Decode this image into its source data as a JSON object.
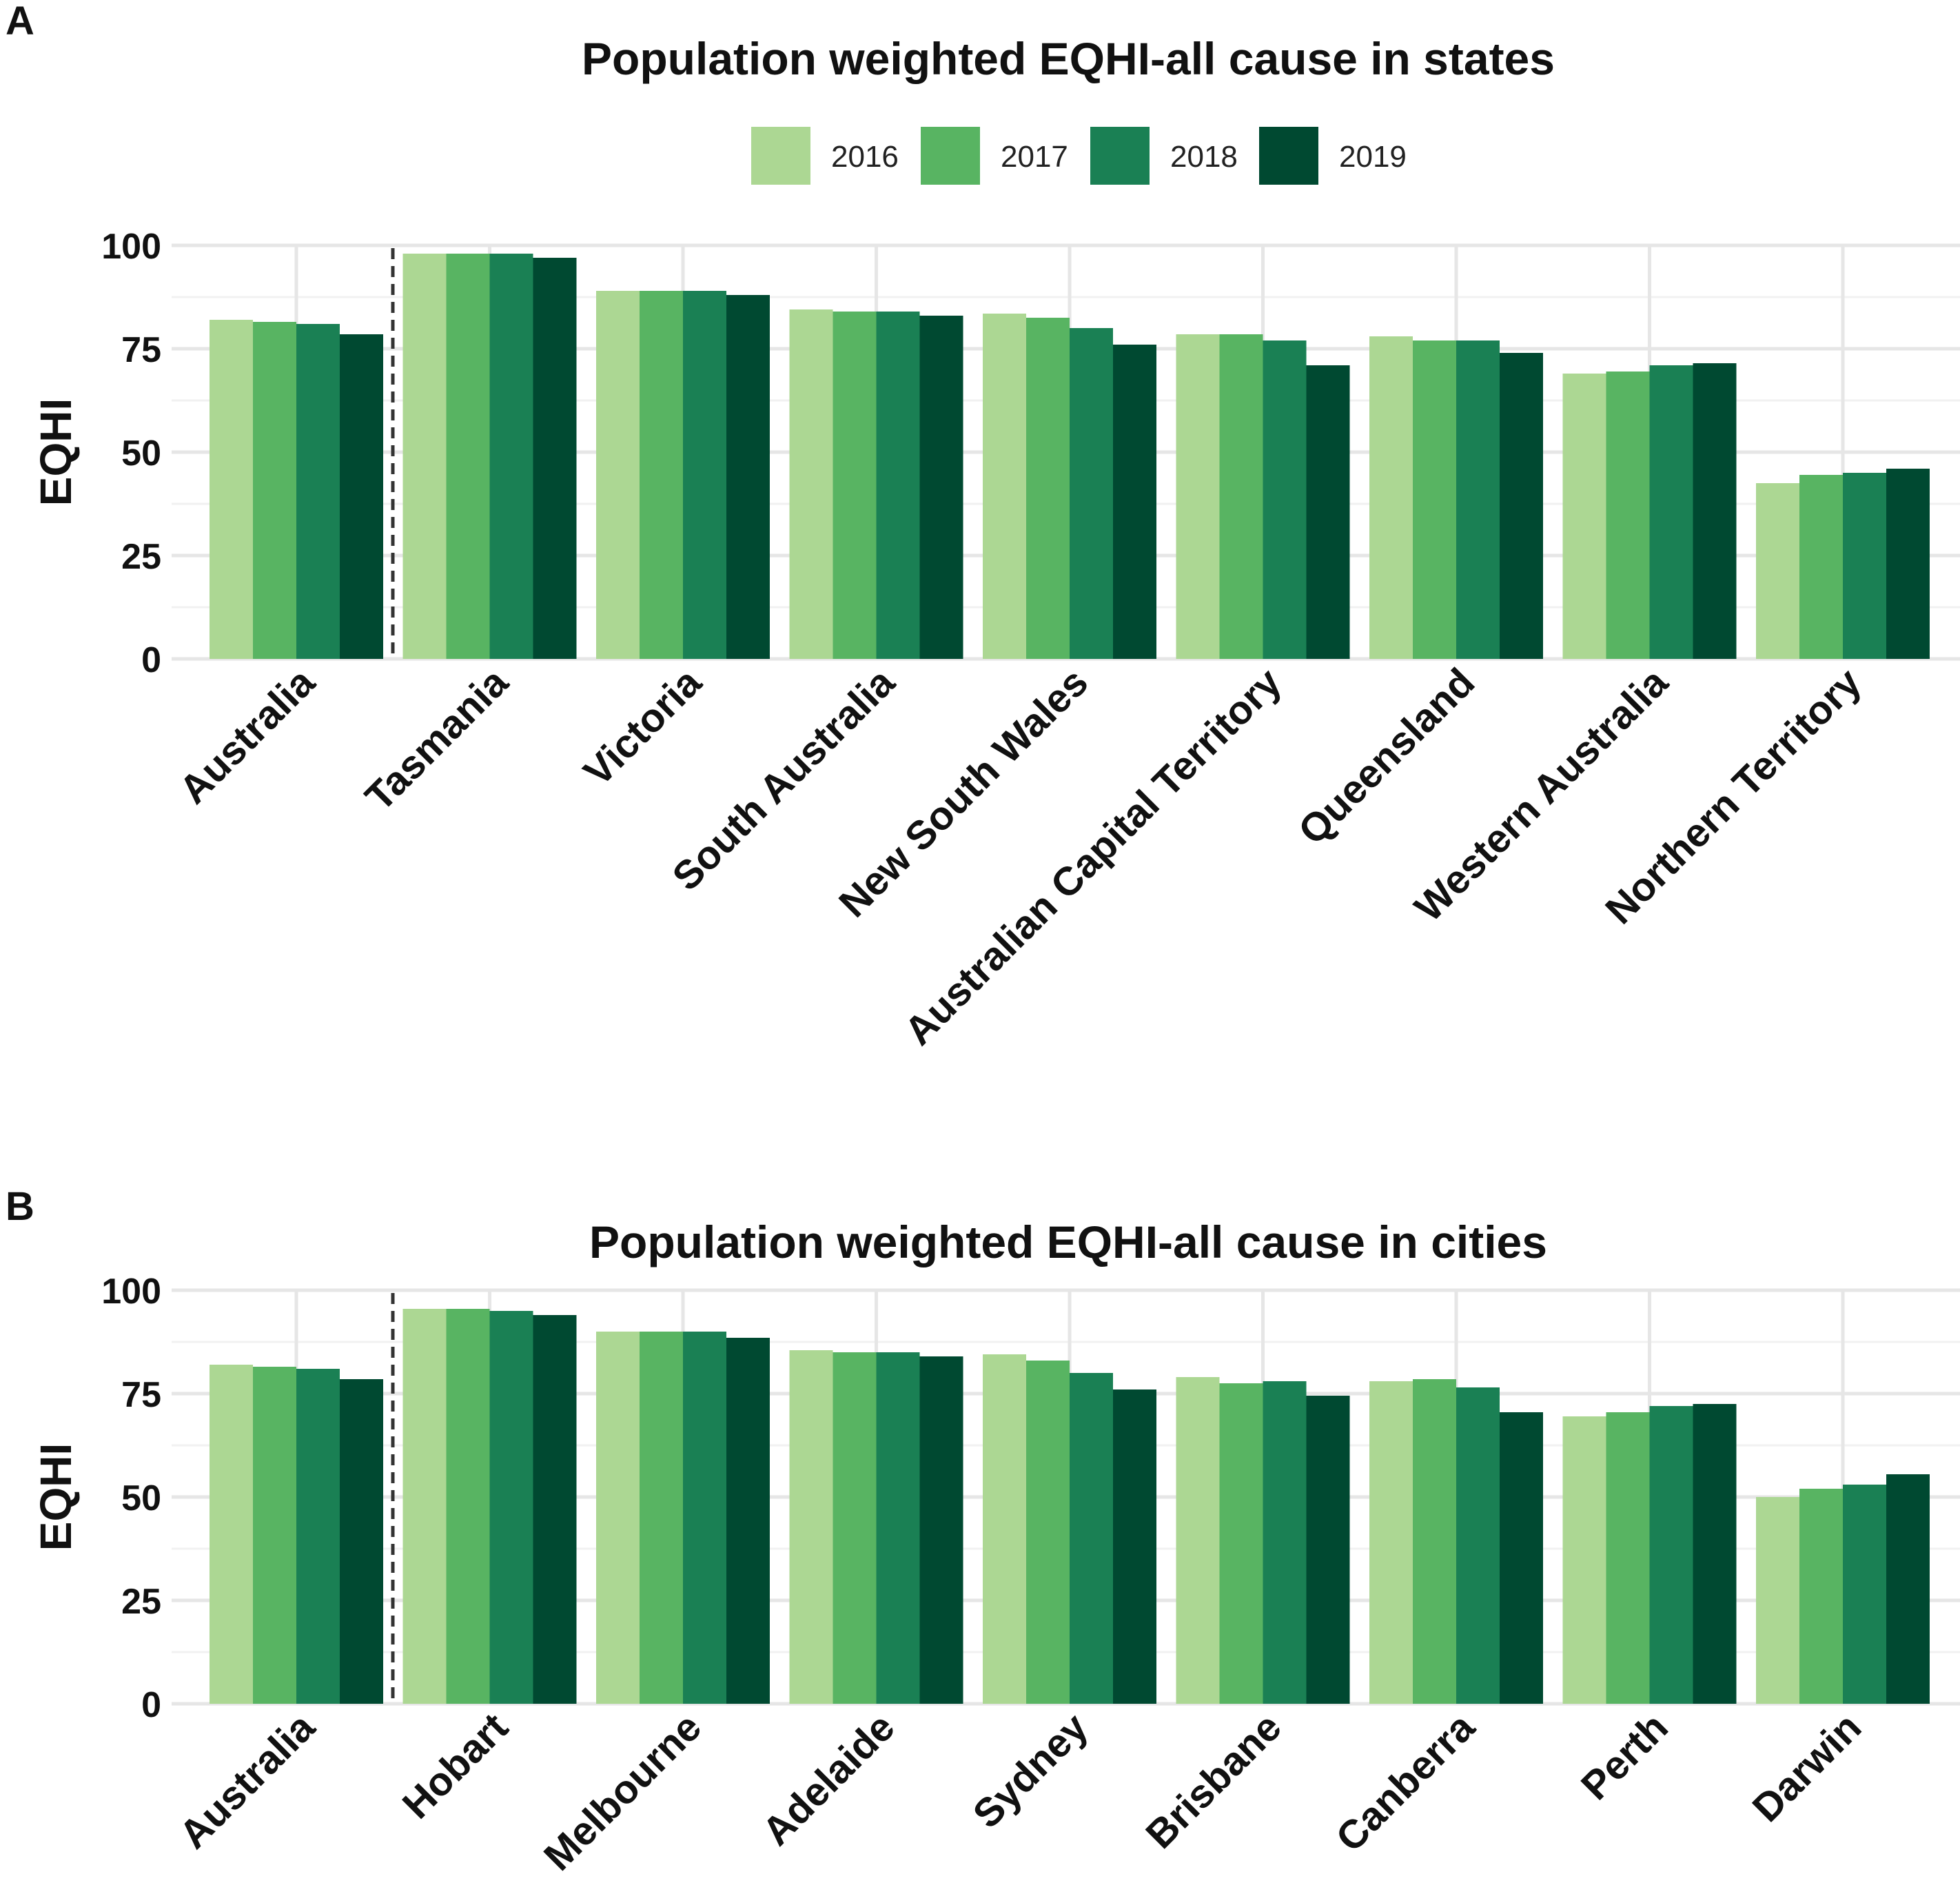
{
  "colors": {
    "2016": "#acd793",
    "2017": "#58b462",
    "2018": "#1a8054",
    "2019": "#004931"
  },
  "legend": {
    "items": [
      "2016",
      "2017",
      "2018",
      "2019"
    ]
  },
  "chart_data": [
    {
      "type": "bar",
      "panel_label": "A",
      "title": "Population weighted EQHI-all cause in states",
      "xlabel": "",
      "ylabel": "EQHI",
      "ylim": [
        0,
        100
      ],
      "yticks": [
        0,
        25,
        50,
        75,
        100
      ],
      "grid": true,
      "legend_position": "top",
      "categories": [
        "Australia",
        "Tasmania",
        "Victoria",
        "South Australia",
        "New South Wales",
        "Australian Capital Territory",
        "Queensland",
        "Western Australia",
        "Northern Territory"
      ],
      "series": [
        {
          "name": "2016",
          "values": [
            82,
            98,
            89,
            84.5,
            83.5,
            78.5,
            78,
            69,
            42.5
          ]
        },
        {
          "name": "2017",
          "values": [
            81.5,
            98,
            89,
            84,
            82.5,
            78.5,
            77,
            69.5,
            44.5
          ]
        },
        {
          "name": "2018",
          "values": [
            81,
            98,
            89,
            84,
            80,
            77,
            77,
            71,
            45
          ]
        },
        {
          "name": "2019",
          "values": [
            78.5,
            97,
            88,
            83,
            76,
            71,
            74,
            71.5,
            46
          ]
        }
      ]
    },
    {
      "type": "bar",
      "panel_label": "B",
      "title": "Population weighted EQHI-all cause in cities",
      "xlabel": "",
      "ylabel": "EQHI",
      "ylim": [
        0,
        100
      ],
      "yticks": [
        0,
        25,
        50,
        75,
        100
      ],
      "grid": true,
      "legend_position": "none",
      "categories": [
        "Australia",
        "Hobart",
        "Melbourne",
        "Adelaide",
        "Sydney",
        "Brisbane",
        "Canberra",
        "Perth",
        "Darwin"
      ],
      "series": [
        {
          "name": "2016",
          "values": [
            82,
            95.5,
            90,
            85.5,
            84.5,
            79,
            78,
            69.5,
            50
          ]
        },
        {
          "name": "2017",
          "values": [
            81.5,
            95.5,
            90,
            85,
            83,
            77.5,
            78.5,
            70.5,
            52
          ]
        },
        {
          "name": "2018",
          "values": [
            81,
            95,
            90,
            85,
            80,
            78,
            76.5,
            72,
            53
          ]
        },
        {
          "name": "2019",
          "values": [
            78.5,
            94,
            88.5,
            84,
            76,
            74.5,
            70.5,
            72.5,
            55.5
          ]
        }
      ]
    }
  ]
}
